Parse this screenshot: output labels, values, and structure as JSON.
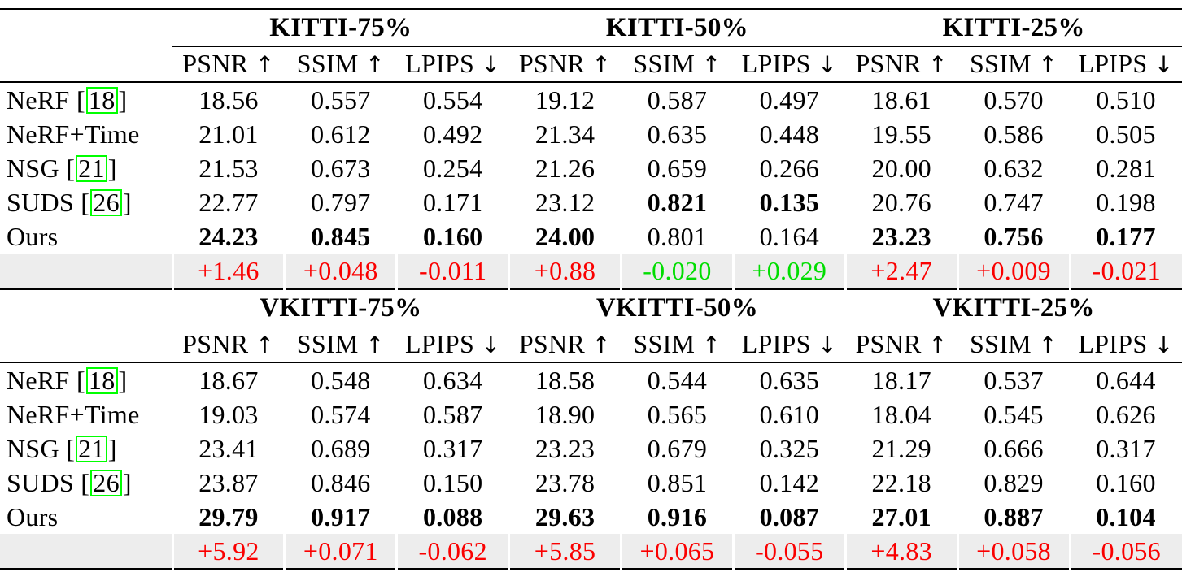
{
  "figure": {
    "kind": "paper-results-table",
    "colors": {
      "red": "#fa0000",
      "green": "#00dd00",
      "citation_box": "#00ff00",
      "delta_row_background": "#ededed",
      "rule": "#000000"
    },
    "arrow_glyphs": {
      "up": "↑",
      "down": "↓"
    }
  },
  "chart_data": {
    "type": "table",
    "tables": [
      {
        "name": "kitti",
        "groups": [
          "KITTI-75%",
          "KITTI-50%",
          "KITTI-25%"
        ],
        "metrics": [
          {
            "name": "PSNR",
            "direction": "up"
          },
          {
            "name": "SSIM",
            "direction": "up"
          },
          {
            "name": "LPIPS",
            "direction": "down"
          }
        ],
        "rows": [
          {
            "label": "NeRF",
            "cite": "18",
            "values": [
              {
                "v": "18.56"
              },
              {
                "v": "0.557"
              },
              {
                "v": "0.554"
              },
              {
                "v": "19.12"
              },
              {
                "v": "0.587"
              },
              {
                "v": "0.497"
              },
              {
                "v": "18.61"
              },
              {
                "v": "0.570"
              },
              {
                "v": "0.510"
              }
            ]
          },
          {
            "label": "NeRF+Time",
            "cite": null,
            "values": [
              {
                "v": "21.01"
              },
              {
                "v": "0.612"
              },
              {
                "v": "0.492"
              },
              {
                "v": "21.34"
              },
              {
                "v": "0.635"
              },
              {
                "v": "0.448"
              },
              {
                "v": "19.55"
              },
              {
                "v": "0.586"
              },
              {
                "v": "0.505"
              }
            ]
          },
          {
            "label": "NSG",
            "cite": "21",
            "values": [
              {
                "v": "21.53"
              },
              {
                "v": "0.673"
              },
              {
                "v": "0.254"
              },
              {
                "v": "21.26"
              },
              {
                "v": "0.659"
              },
              {
                "v": "0.266"
              },
              {
                "v": "20.00"
              },
              {
                "v": "0.632"
              },
              {
                "v": "0.281"
              }
            ]
          },
          {
            "label": "SUDS",
            "cite": "26",
            "values": [
              {
                "v": "22.77"
              },
              {
                "v": "0.797"
              },
              {
                "v": "0.171"
              },
              {
                "v": "23.12"
              },
              {
                "v": "0.821",
                "bold": true
              },
              {
                "v": "0.135",
                "bold": true
              },
              {
                "v": "20.76"
              },
              {
                "v": "0.747"
              },
              {
                "v": "0.198"
              }
            ]
          },
          {
            "label": "Ours",
            "cite": null,
            "values": [
              {
                "v": "24.23",
                "bold": true
              },
              {
                "v": "0.845",
                "bold": true
              },
              {
                "v": "0.160",
                "bold": true
              },
              {
                "v": "24.00",
                "bold": true
              },
              {
                "v": "0.801"
              },
              {
                "v": "0.164"
              },
              {
                "v": "23.23",
                "bold": true
              },
              {
                "v": "0.756",
                "bold": true
              },
              {
                "v": "0.177",
                "bold": true
              }
            ]
          }
        ],
        "delta_row": {
          "values": [
            {
              "v": "+1.46",
              "color": "red"
            },
            {
              "v": "+0.048",
              "color": "red"
            },
            {
              "v": "-0.011",
              "color": "red"
            },
            {
              "v": "+0.88",
              "color": "red"
            },
            {
              "v": "-0.020",
              "color": "green"
            },
            {
              "v": "+0.029",
              "color": "green"
            },
            {
              "v": "+2.47",
              "color": "red"
            },
            {
              "v": "+0.009",
              "color": "red"
            },
            {
              "v": "-0.021",
              "color": "red"
            }
          ]
        }
      },
      {
        "name": "vkitti",
        "groups": [
          "VKITTI-75%",
          "VKITTI-50%",
          "VKITTI-25%"
        ],
        "metrics": [
          {
            "name": "PSNR",
            "direction": "up"
          },
          {
            "name": "SSIM",
            "direction": "up"
          },
          {
            "name": "LPIPS",
            "direction": "down"
          }
        ],
        "rows": [
          {
            "label": "NeRF",
            "cite": "18",
            "values": [
              {
                "v": "18.67"
              },
              {
                "v": "0.548"
              },
              {
                "v": "0.634"
              },
              {
                "v": "18.58"
              },
              {
                "v": "0.544"
              },
              {
                "v": "0.635"
              },
              {
                "v": "18.17"
              },
              {
                "v": "0.537"
              },
              {
                "v": "0.644"
              }
            ]
          },
          {
            "label": "NeRF+Time",
            "cite": null,
            "values": [
              {
                "v": "19.03"
              },
              {
                "v": "0.574"
              },
              {
                "v": "0.587"
              },
              {
                "v": "18.90"
              },
              {
                "v": "0.565"
              },
              {
                "v": "0.610"
              },
              {
                "v": "18.04"
              },
              {
                "v": "0.545"
              },
              {
                "v": "0.626"
              }
            ]
          },
          {
            "label": "NSG",
            "cite": "21",
            "values": [
              {
                "v": "23.41"
              },
              {
                "v": "0.689"
              },
              {
                "v": "0.317"
              },
              {
                "v": "23.23"
              },
              {
                "v": "0.679"
              },
              {
                "v": "0.325"
              },
              {
                "v": "21.29"
              },
              {
                "v": "0.666"
              },
              {
                "v": "0.317"
              }
            ]
          },
          {
            "label": "SUDS",
            "cite": "26",
            "values": [
              {
                "v": "23.87"
              },
              {
                "v": "0.846"
              },
              {
                "v": "0.150"
              },
              {
                "v": "23.78"
              },
              {
                "v": "0.851"
              },
              {
                "v": "0.142"
              },
              {
                "v": "22.18"
              },
              {
                "v": "0.829"
              },
              {
                "v": "0.160"
              }
            ]
          },
          {
            "label": "Ours",
            "cite": null,
            "values": [
              {
                "v": "29.79",
                "bold": true
              },
              {
                "v": "0.917",
                "bold": true
              },
              {
                "v": "0.088",
                "bold": true
              },
              {
                "v": "29.63",
                "bold": true
              },
              {
                "v": "0.916",
                "bold": true
              },
              {
                "v": "0.087",
                "bold": true
              },
              {
                "v": "27.01",
                "bold": true
              },
              {
                "v": "0.887",
                "bold": true
              },
              {
                "v": "0.104",
                "bold": true
              }
            ]
          }
        ],
        "delta_row": {
          "values": [
            {
              "v": "+5.92",
              "color": "red"
            },
            {
              "v": "+0.071",
              "color": "red"
            },
            {
              "v": "-0.062",
              "color": "red"
            },
            {
              "v": "+5.85",
              "color": "red"
            },
            {
              "v": "+0.065",
              "color": "red"
            },
            {
              "v": "-0.055",
              "color": "red"
            },
            {
              "v": "+4.83",
              "color": "red"
            },
            {
              "v": "+0.058",
              "color": "red"
            },
            {
              "v": "-0.056",
              "color": "red"
            }
          ]
        }
      }
    ]
  }
}
